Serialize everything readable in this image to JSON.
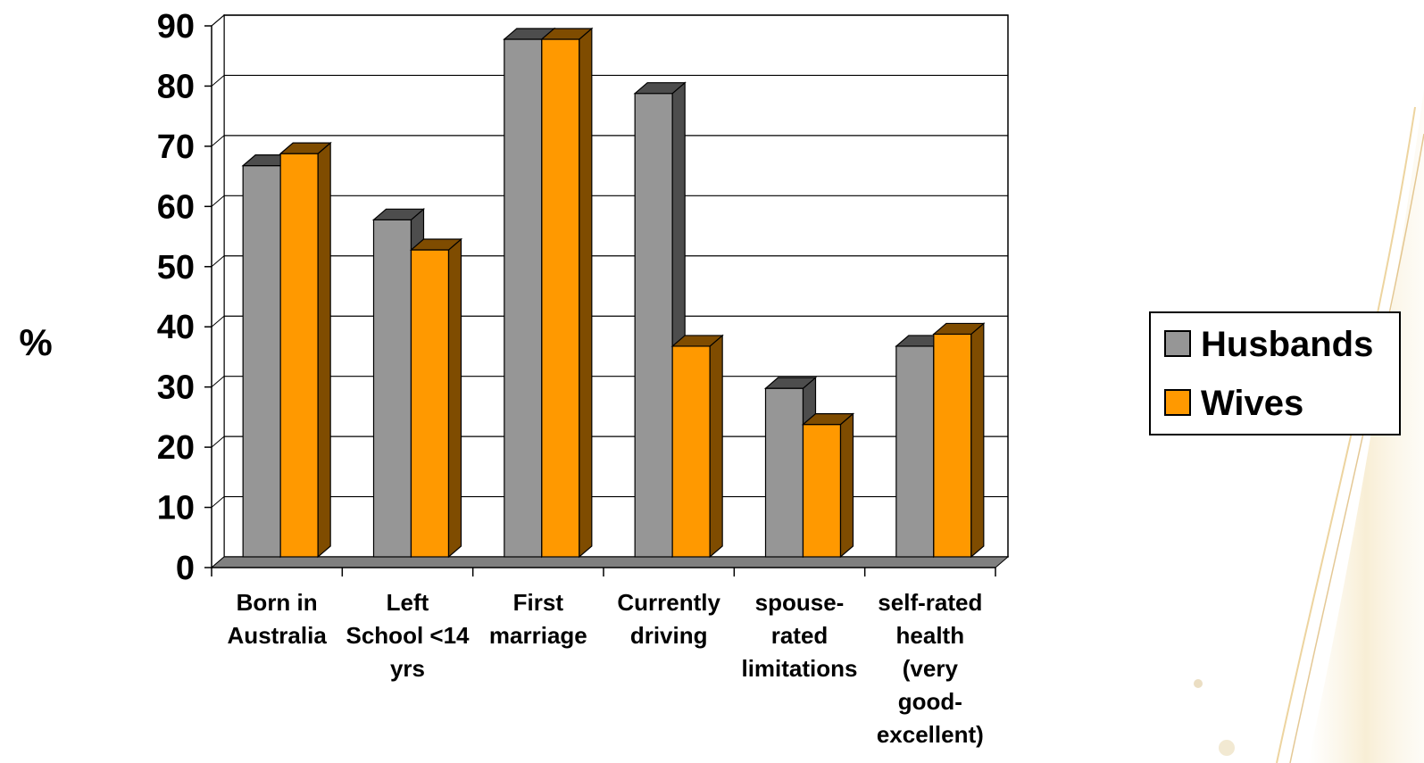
{
  "chart_data": {
    "type": "bar",
    "categories": [
      [
        "Born in",
        "Australia"
      ],
      [
        "Left",
        "School <14",
        "yrs"
      ],
      [
        "First",
        "marriage"
      ],
      [
        "Currently",
        "driving"
      ],
      [
        "spouse-",
        "rated",
        "limitations"
      ],
      [
        "self-rated",
        "health",
        "(very",
        "good-",
        "excellent)"
      ]
    ],
    "series": [
      {
        "name": "Husbands",
        "values": [
          65,
          56,
          86,
          77,
          28,
          35
        ],
        "color": "#969696",
        "side_color": "#4d4d4d"
      },
      {
        "name": "Wives",
        "values": [
          67,
          51,
          86,
          35,
          22,
          37
        ],
        "color": "#ff9900",
        "side_color": "#7f4c00"
      }
    ],
    "ylabel": "%",
    "ylim": [
      0,
      90
    ],
    "yticks": [
      0,
      10,
      20,
      30,
      40,
      50,
      60,
      70,
      80,
      90
    ],
    "grid": true,
    "legend": "right",
    "style": "3d-clustered-bar"
  }
}
